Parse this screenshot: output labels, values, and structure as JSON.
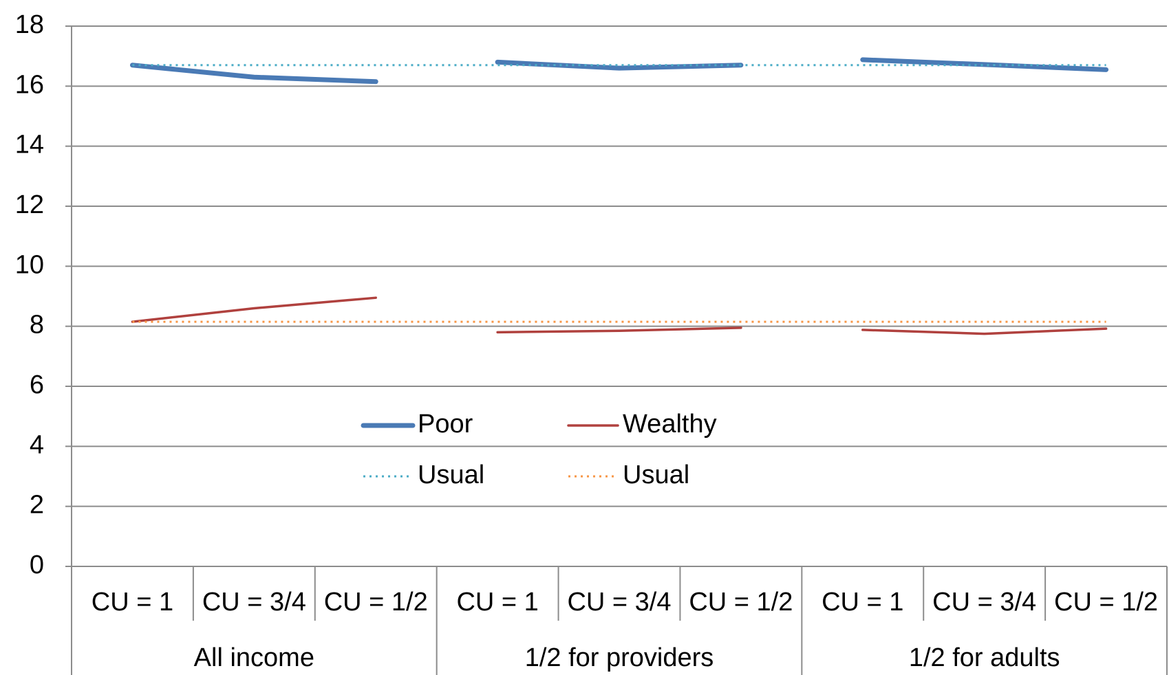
{
  "chart_data": {
    "type": "line",
    "groups": [
      {
        "name": "All income",
        "categories": [
          "CU = 1",
          "CU = 3/4",
          "CU = 1/2"
        ]
      },
      {
        "name": "1/2 for providers",
        "categories": [
          "CU = 1",
          "CU = 3/4",
          "CU = 1/2"
        ]
      },
      {
        "name": "1/2 for adults",
        "categories": [
          "CU = 1",
          "CU = 3/4",
          "CU = 1/2"
        ]
      }
    ],
    "series": [
      {
        "name": "Poor",
        "color": "#4a7ab5",
        "style": "solid",
        "continuous": false,
        "values": [
          [
            16.7,
            16.3,
            16.15
          ],
          [
            16.8,
            16.6,
            16.7
          ],
          [
            16.88,
            16.72,
            16.55
          ]
        ]
      },
      {
        "name": "Wealthy",
        "color": "#b0413e",
        "style": "thin",
        "continuous": false,
        "values": [
          [
            8.15,
            8.6,
            8.95
          ],
          [
            7.8,
            7.85,
            7.95
          ],
          [
            7.88,
            7.75,
            7.92
          ]
        ]
      },
      {
        "name": "Usual",
        "color": "#4bacc6",
        "style": "dotted",
        "continuous": true,
        "values": [
          [
            16.7,
            16.7,
            16.7
          ],
          [
            16.7,
            16.7,
            16.7
          ],
          [
            16.7,
            16.7,
            16.7
          ]
        ]
      },
      {
        "name": "Usual",
        "color": "#f79646",
        "style": "dotted",
        "continuous": true,
        "values": [
          [
            8.15,
            8.15,
            8.15
          ],
          [
            8.15,
            8.15,
            8.15
          ],
          [
            8.15,
            8.15,
            8.15
          ]
        ]
      }
    ],
    "ylim": [
      0,
      18
    ],
    "yticks": [
      0,
      2,
      4,
      6,
      8,
      10,
      12,
      14,
      16,
      18
    ],
    "grid": true
  }
}
